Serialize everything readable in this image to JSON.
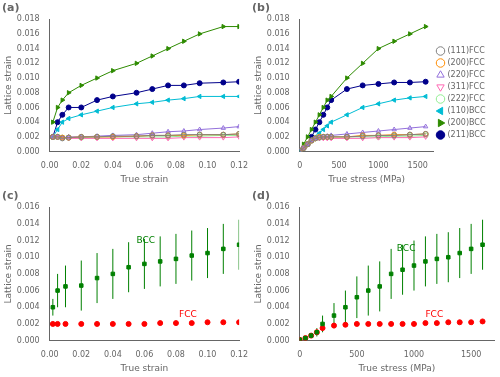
{
  "chart_data": [
    {
      "type": "line",
      "title": "(a)",
      "xlabel": "True strain",
      "ylabel": "Lattice strain",
      "x": [
        0.002,
        0.005,
        0.008,
        0.012,
        0.02,
        0.03,
        0.04,
        0.055,
        0.065,
        0.075,
        0.085,
        0.095,
        0.11,
        0.12
      ],
      "series": [
        {
          "color": "#808080",
          "marker": "circle_open",
          "values": [
            0.002,
            0.002,
            0.0018,
            0.0019,
            0.002,
            0.002,
            0.0021,
            0.0021,
            0.0022,
            0.0022,
            0.0023,
            0.0023,
            0.0023,
            0.0024
          ]
        },
        {
          "color": "#ff8c00",
          "marker": "circle_open",
          "values": [
            0.002,
            0.002,
            0.0019,
            0.0019,
            0.002,
            0.002,
            0.002,
            0.0021,
            0.0022,
            0.0022,
            0.0022,
            0.0023,
            0.0023,
            0.0024
          ]
        },
        {
          "color": "#9370db",
          "marker": "triangleup_open",
          "values": [
            0.002,
            0.002,
            0.0019,
            0.002,
            0.002,
            0.0021,
            0.0022,
            0.0023,
            0.0025,
            0.0027,
            0.0028,
            0.003,
            0.0032,
            0.0034
          ]
        },
        {
          "color": "#ff69b4",
          "marker": "triangledown_open",
          "values": [
            0.002,
            0.002,
            0.0019,
            0.0018,
            0.0018,
            0.0018,
            0.0018,
            0.0018,
            0.0018,
            0.0018,
            0.0019,
            0.0019,
            0.0019,
            0.002
          ]
        },
        {
          "color": "#90ee90",
          "marker": "circle_open",
          "values": [
            0.002,
            0.002,
            0.0019,
            0.0019,
            0.0019,
            0.002,
            0.002,
            0.002,
            0.002,
            0.002,
            0.0021,
            0.0021,
            0.0022,
            0.0022
          ]
        },
        {
          "color": "#00bcd4",
          "marker": "triangleleft",
          "values": [
            0.002,
            0.003,
            0.004,
            0.0045,
            0.005,
            0.0055,
            0.006,
            0.0065,
            0.0067,
            0.007,
            0.0072,
            0.0075,
            0.0075,
            0.0075
          ]
        },
        {
          "color": "#2e8b00",
          "marker": "triangleright",
          "values": [
            0.004,
            0.006,
            0.007,
            0.008,
            0.009,
            0.01,
            0.011,
            0.012,
            0.013,
            0.014,
            0.015,
            0.016,
            0.017,
            0.017
          ]
        },
        {
          "color": "#00008b",
          "marker": "circle",
          "values": [
            0.002,
            0.004,
            0.005,
            0.006,
            0.006,
            0.007,
            0.0075,
            0.008,
            0.0085,
            0.009,
            0.009,
            0.0093,
            0.0094,
            0.0095
          ]
        }
      ],
      "xlim": [
        0,
        0.12
      ],
      "xticks": [
        {
          "value": 0,
          "label": "0.00"
        },
        {
          "value": 0.02,
          "label": "0.02"
        },
        {
          "value": 0.04,
          "label": "0.04"
        },
        {
          "value": 0.06,
          "label": "0.06"
        },
        {
          "value": 0.08,
          "label": "0.08"
        },
        {
          "value": 0.1,
          "label": "0.10"
        },
        {
          "value": 0.12,
          "label": "0.12"
        }
      ],
      "ylim": [
        0,
        0.018
      ],
      "yticks": [
        {
          "value": 0,
          "label": "0.000"
        },
        {
          "value": 0.002,
          "label": "0.002"
        },
        {
          "value": 0.004,
          "label": "0.004"
        },
        {
          "value": 0.006,
          "label": "0.006"
        },
        {
          "value": 0.008,
          "label": "0.008"
        },
        {
          "value": 0.01,
          "label": "0.010"
        },
        {
          "value": 0.012,
          "label": "0.012"
        },
        {
          "value": 0.014,
          "label": "0.014"
        },
        {
          "value": 0.016,
          "label": "0.016"
        },
        {
          "value": 0.018,
          "label": "0.018"
        }
      ],
      "grid": false
    },
    {
      "type": "line",
      "title": "(b)",
      "xlabel": "True stress (MPa)",
      "ylabel": "Lattice strain",
      "x": [
        0,
        50,
        100,
        150,
        200,
        250,
        300,
        350,
        400,
        600,
        800,
        1000,
        1200,
        1400,
        1600
      ],
      "series": [
        {
          "name": "(111)FCC",
          "color": "#808080",
          "marker": "circle_open",
          "values": [
            0.0001,
            0.0005,
            0.001,
            0.0015,
            0.0018,
            0.0019,
            0.002,
            0.002,
            0.002,
            0.002,
            0.0021,
            0.0022,
            0.0022,
            0.0023,
            0.0024
          ]
        },
        {
          "name": "(200)FCC",
          "color": "#ff8c00",
          "marker": "circle_open",
          "values": [
            0.0001,
            0.0005,
            0.001,
            0.0015,
            0.0018,
            0.002,
            0.002,
            0.002,
            0.002,
            0.002,
            0.0022,
            0.0022,
            0.0023,
            0.0023,
            0.0024
          ]
        },
        {
          "name": "(220)FCC",
          "color": "#9370db",
          "marker": "triangleup_open",
          "values": [
            0.0001,
            0.0005,
            0.001,
            0.0015,
            0.0018,
            0.002,
            0.002,
            0.0021,
            0.0022,
            0.0024,
            0.0026,
            0.0028,
            0.003,
            0.0032,
            0.0034
          ]
        },
        {
          "name": "(311)FCC",
          "color": "#ff69b4",
          "marker": "triangledown_open",
          "values": [
            0.0001,
            0.0005,
            0.001,
            0.0015,
            0.0018,
            0.0018,
            0.0018,
            0.0018,
            0.0018,
            0.0018,
            0.0018,
            0.0019,
            0.0019,
            0.0019,
            0.002
          ]
        },
        {
          "name": "(222)FCC",
          "color": "#90ee90",
          "marker": "circle_open",
          "values": [
            0.0001,
            0.0005,
            0.001,
            0.0015,
            0.0018,
            0.002,
            0.002,
            0.002,
            0.002,
            0.002,
            0.002,
            0.002,
            0.0021,
            0.0021,
            0.0022
          ]
        },
        {
          "name": "(110)BCC",
          "color": "#00bcd4",
          "marker": "triangleleft",
          "values": [
            0.0001,
            0.0005,
            0.001,
            0.0015,
            0.002,
            0.0025,
            0.003,
            0.0035,
            0.004,
            0.005,
            0.006,
            0.0065,
            0.007,
            0.0073,
            0.0075
          ]
        },
        {
          "name": "(200)BCC",
          "color": "#2e8b00",
          "marker": "triangleright",
          "values": [
            0.0001,
            0.001,
            0.002,
            0.003,
            0.004,
            0.005,
            0.006,
            0.007,
            0.0075,
            0.01,
            0.012,
            0.014,
            0.015,
            0.016,
            0.017
          ]
        },
        {
          "name": "(211)BCC",
          "color": "#00008b",
          "marker": "circle",
          "values": [
            0.0001,
            0.0005,
            0.001,
            0.002,
            0.003,
            0.004,
            0.005,
            0.006,
            0.007,
            0.0085,
            0.009,
            0.0092,
            0.0094,
            0.0094,
            0.0095
          ]
        }
      ],
      "xlim": [
        0,
        1700
      ],
      "xticks": [
        0,
        500,
        1000,
        1500
      ],
      "ylim": [
        0,
        0.018
      ],
      "yticks": [
        {
          "value": 0,
          "label": "0.000"
        },
        {
          "value": 0.002,
          "label": "0.002"
        },
        {
          "value": 0.004,
          "label": "0.004"
        },
        {
          "value": 0.006,
          "label": "0.006"
        },
        {
          "value": 0.008,
          "label": "0.008"
        },
        {
          "value": 0.01,
          "label": "0.010"
        },
        {
          "value": 0.012,
          "label": "0.012"
        },
        {
          "value": 0.014,
          "label": "0.014"
        },
        {
          "value": 0.016,
          "label": "0.016"
        },
        {
          "value": 0.018,
          "label": "0.018"
        }
      ],
      "grid": false,
      "legend": "right"
    },
    {
      "type": "scatter",
      "title": "(c)",
      "xlabel": "True strain",
      "ylabel": "Lattice strain",
      "x": [
        0.002,
        0.005,
        0.01,
        0.02,
        0.03,
        0.04,
        0.05,
        0.06,
        0.07,
        0.08,
        0.09,
        0.1,
        0.11,
        0.12
      ],
      "series": [
        {
          "color": "green",
          "marker": "square",
          "values": [
            0.004,
            0.006,
            0.0065,
            0.0066,
            0.0075,
            0.008,
            0.0088,
            0.0092,
            0.0095,
            0.0098,
            0.0102,
            0.0105,
            0.011,
            0.0115
          ],
          "yerr": [
            0.001,
            0.002,
            0.0025,
            0.003,
            0.003,
            0.003,
            0.003,
            0.003,
            0.003,
            0.003,
            0.003,
            0.003,
            0.003,
            0.003
          ]
        },
        {
          "color": "red",
          "marker": "circle",
          "values": [
            0.002,
            0.002,
            0.002,
            0.002,
            0.002,
            0.002,
            0.002,
            0.002,
            0.0021,
            0.0021,
            0.0021,
            0.0022,
            0.0022,
            0.0022
          ],
          "yerr": [
            0.0002,
            0.0002,
            0.0002,
            0.0002,
            0.0002,
            0.0002,
            0.0002,
            0.0002,
            0.0002,
            0.0002,
            0.0002,
            0.0002,
            0.0002,
            0.0002
          ]
        }
      ],
      "annotations": [
        {
          "text": "BCC",
          "x": 0.055,
          "y": 0.0115,
          "color": "green"
        },
        {
          "text": "FCC",
          "x": 0.082,
          "y": 0.0026,
          "color": "red"
        }
      ],
      "xlim": [
        0,
        0.12
      ],
      "xticks": [
        {
          "value": 0,
          "label": "0.00"
        },
        {
          "value": 0.02,
          "label": "0.02"
        },
        {
          "value": 0.04,
          "label": "0.04"
        },
        {
          "value": 0.06,
          "label": "0.06"
        },
        {
          "value": 0.08,
          "label": "0.08"
        },
        {
          "value": 0.1,
          "label": "0.10"
        },
        {
          "value": 0.12,
          "label": "0.12"
        }
      ],
      "ylim": [
        0,
        0.016
      ],
      "yticks": [
        {
          "value": 0,
          "label": "0.000"
        },
        {
          "value": 0.002,
          "label": "0.002"
        },
        {
          "value": 0.004,
          "label": "0.004"
        },
        {
          "value": 0.006,
          "label": "0.006"
        },
        {
          "value": 0.008,
          "label": "0.008"
        },
        {
          "value": 0.01,
          "label": "0.010"
        },
        {
          "value": 0.012,
          "label": "0.012"
        },
        {
          "value": 0.014,
          "label": "0.014"
        },
        {
          "value": 0.016,
          "label": "0.016"
        }
      ],
      "grid": false
    },
    {
      "type": "scatter",
      "title": "(d)",
      "xlabel": "True stress (MPa)",
      "ylabel": "Lattice strain",
      "x": [
        0,
        50,
        100,
        150,
        200,
        300,
        400,
        500,
        600,
        700,
        800,
        900,
        1000,
        1100,
        1200,
        1300,
        1400,
        1500,
        1600
      ],
      "series": [
        {
          "color": "green",
          "marker": "square",
          "values": [
            0.0001,
            0.0003,
            0.0006,
            0.001,
            0.002,
            0.003,
            0.004,
            0.0052,
            0.006,
            0.0065,
            0.008,
            0.0085,
            0.009,
            0.0095,
            0.0098,
            0.01,
            0.0105,
            0.011,
            0.0115
          ],
          "yerr": [
            0.0001,
            0.0002,
            0.0003,
            0.0005,
            0.001,
            0.0015,
            0.002,
            0.0025,
            0.003,
            0.003,
            0.003,
            0.003,
            0.003,
            0.003,
            0.003,
            0.003,
            0.003,
            0.003,
            0.003
          ]
        },
        {
          "color": "red",
          "marker": "circle",
          "values": [
            0.0001,
            0.0003,
            0.0006,
            0.001,
            0.0015,
            0.0018,
            0.0019,
            0.002,
            0.002,
            0.002,
            0.002,
            0.002,
            0.002,
            0.0021,
            0.0021,
            0.0022,
            0.0022,
            0.0022,
            0.0023
          ],
          "yerr": [
            0.0001,
            0.0001,
            0.0002,
            0.0003,
            0.0003,
            0.0003,
            0.0002,
            0.0002,
            0.0002,
            0.0002,
            0.0002,
            0.0002,
            0.0002,
            0.0002,
            0.0002,
            0.0002,
            0.0002,
            0.0002,
            0.0002
          ]
        }
      ],
      "annotations": [
        {
          "text": "BCC",
          "x": 850,
          "y": 0.0105,
          "color": "green"
        },
        {
          "text": "FCC",
          "x": 1100,
          "y": 0.0026,
          "color": "red"
        }
      ],
      "xlim": [
        0,
        1700
      ],
      "xticks": [
        0,
        500,
        1000,
        1500
      ],
      "ylim": [
        0,
        0.016
      ],
      "yticks": [
        {
          "value": 0,
          "label": "0.000"
        },
        {
          "value": 0.002,
          "label": "0.002"
        },
        {
          "value": 0.004,
          "label": "0.004"
        },
        {
          "value": 0.006,
          "label": "0.006"
        },
        {
          "value": 0.008,
          "label": "0.008"
        },
        {
          "value": 0.01,
          "label": "0.010"
        },
        {
          "value": 0.012,
          "label": "0.012"
        },
        {
          "value": 0.014,
          "label": "0.014"
        },
        {
          "value": 0.016,
          "label": "0.016"
        }
      ],
      "grid": false
    }
  ]
}
